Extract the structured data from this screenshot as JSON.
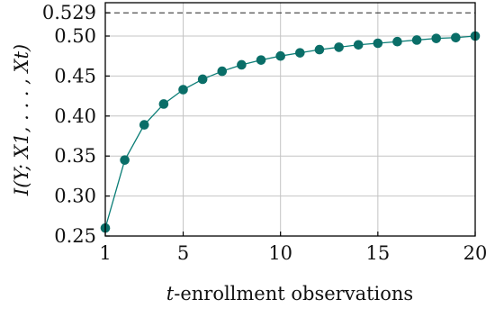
{
  "chart_data": {
    "type": "line",
    "xlabel_prefix": "t",
    "xlabel_rest": "-enrollment observations",
    "ylabel": "I(Y; X1, . . . , Xt)",
    "xlim": [
      1,
      20
    ],
    "ylim": [
      0.25,
      0.529
    ],
    "x_ticks": [
      1,
      5,
      10,
      15,
      20
    ],
    "y_ticks": [
      0.25,
      0.3,
      0.35,
      0.4,
      0.45,
      0.5,
      0.529
    ],
    "y_tick_labels": [
      "0.25",
      "0.30",
      "0.35",
      "0.40",
      "0.45",
      "0.50",
      "0.529"
    ],
    "grid": true,
    "reference_line": {
      "y": 0.529,
      "style": "dashed"
    },
    "series": [
      {
        "x": [
          1,
          2,
          3,
          4,
          5,
          6,
          7,
          8,
          9,
          10,
          11,
          12,
          13,
          14,
          15,
          16,
          17,
          18,
          19,
          20
        ],
        "values": [
          0.26,
          0.345,
          0.389,
          0.415,
          0.433,
          0.446,
          0.456,
          0.464,
          0.47,
          0.475,
          0.479,
          0.483,
          0.486,
          0.489,
          0.491,
          0.493,
          0.495,
          0.497,
          0.498,
          0.5
        ],
        "color": "#0a6e68"
      }
    ]
  }
}
